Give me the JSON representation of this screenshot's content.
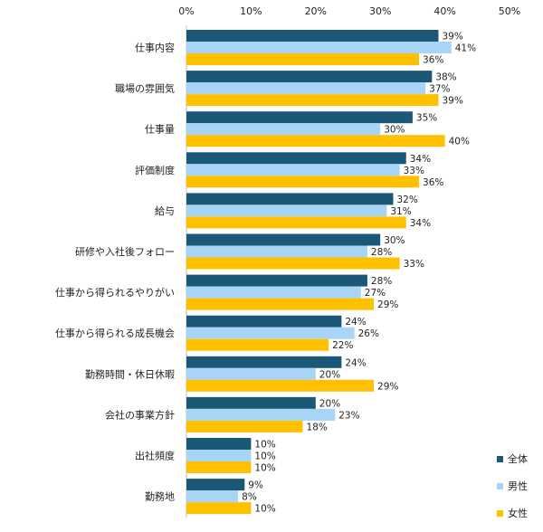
{
  "chart_data": {
    "type": "bar",
    "orientation": "horizontal",
    "xlim": [
      0,
      50
    ],
    "grid": false,
    "legend_position": "bottom-right",
    "value_suffix": "%",
    "x_ticks": [
      "0%",
      "10%",
      "20%",
      "30%",
      "40%",
      "50%"
    ],
    "categories": [
      "仕事内容",
      "職場の雰囲気",
      "仕事量",
      "評価制度",
      "給与",
      "研修や入社後フォロー",
      "仕事から得られるやりがい",
      "仕事から得られる成長機会",
      "勤務時間・休日休暇",
      "会社の事業方針",
      "出社頻度",
      "勤務地"
    ],
    "series": [
      {
        "name": "全体",
        "color": "#1b5878",
        "values": [
          39,
          38,
          35,
          34,
          32,
          30,
          28,
          24,
          24,
          20,
          10,
          9
        ]
      },
      {
        "name": "男性",
        "color": "#a8d4f6",
        "values": [
          41,
          37,
          30,
          33,
          31,
          28,
          27,
          26,
          20,
          23,
          10,
          8
        ]
      },
      {
        "name": "女性",
        "color": "#ffc000",
        "values": [
          36,
          39,
          40,
          36,
          34,
          33,
          29,
          22,
          29,
          18,
          10,
          10
        ]
      }
    ]
  }
}
